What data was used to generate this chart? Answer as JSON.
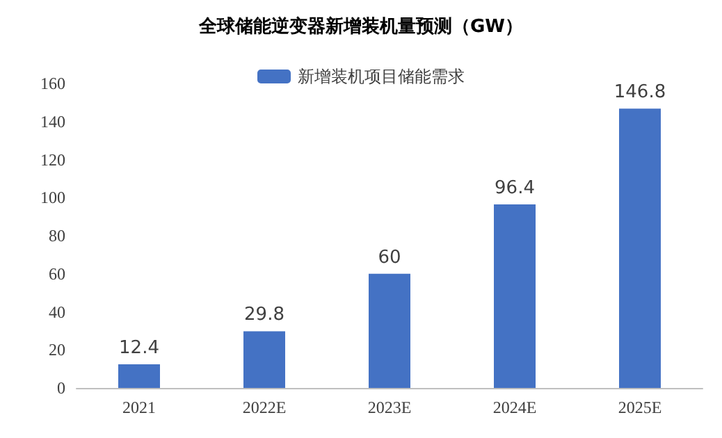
{
  "chart_data": {
    "type": "bar",
    "title": "全球储能逆变器新增装机量预测（GW）",
    "categories": [
      "2021",
      "2022E",
      "2023E",
      "2024E",
      "2025E"
    ],
    "series": [
      {
        "name": "新增装机项目储能需求",
        "color": "#4472c4",
        "values": [
          12.4,
          29.8,
          60,
          96.4,
          146.8
        ]
      }
    ],
    "ylim": [
      0,
      160
    ],
    "yticks": [
      0,
      20,
      40,
      60,
      80,
      100,
      120,
      140,
      160
    ],
    "grid": false,
    "legend": "top",
    "data_labels": true
  }
}
